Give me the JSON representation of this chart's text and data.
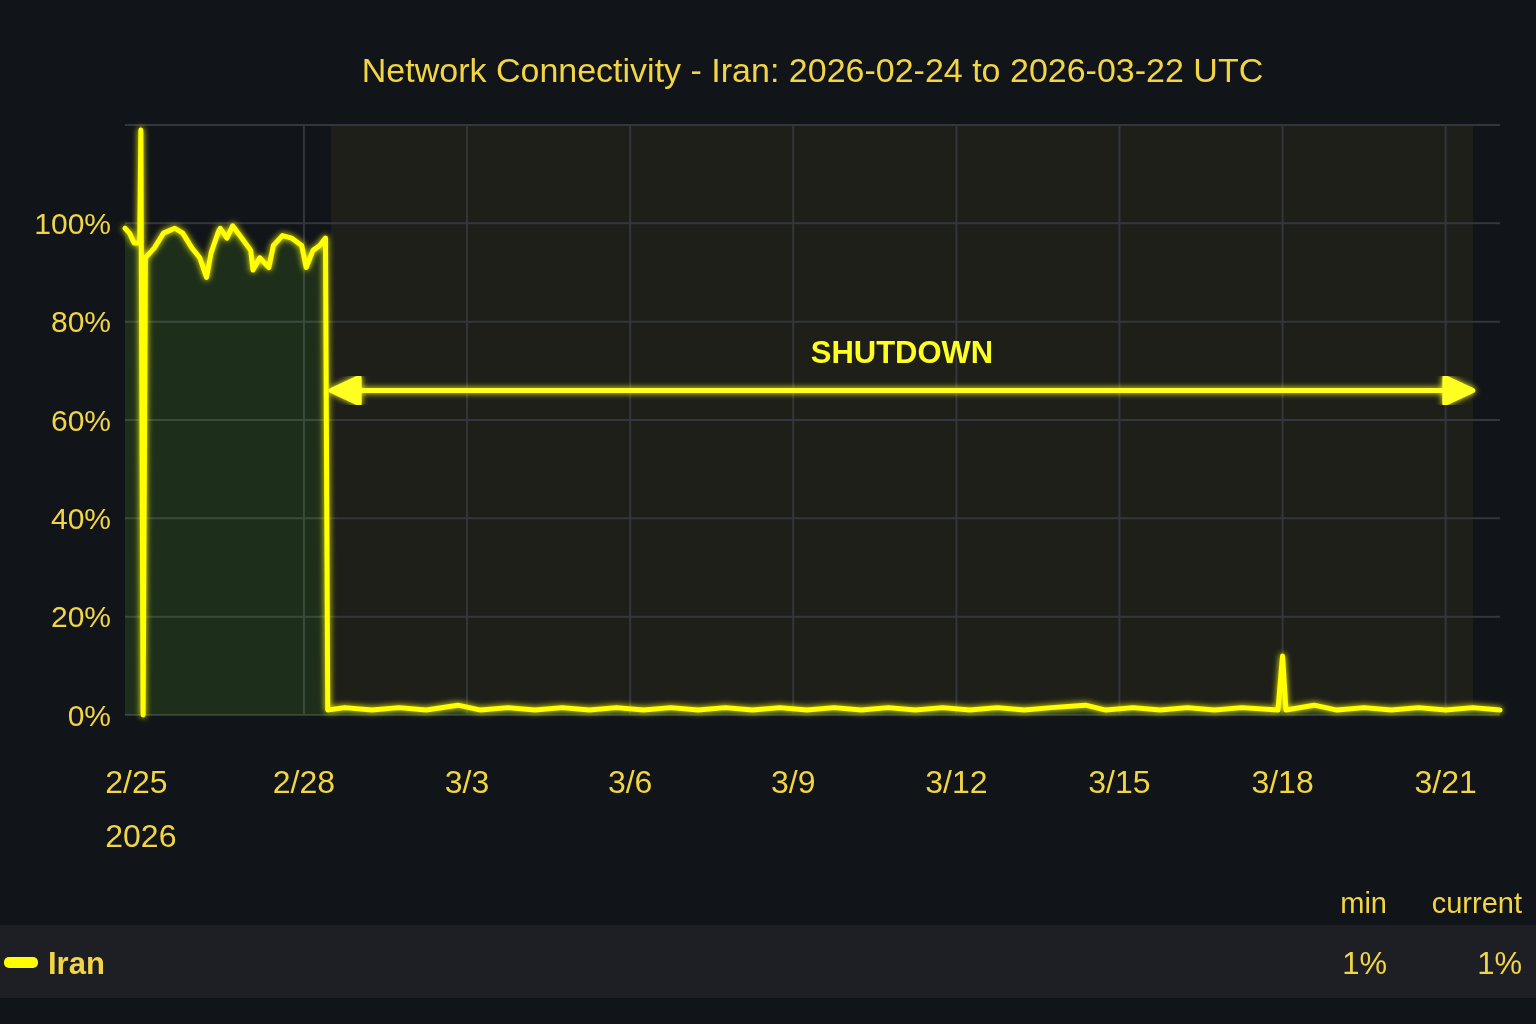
{
  "chart_data": {
    "type": "area",
    "title": "Network Connectivity - Iran: 2026-02-24 to 2026-03-22 UTC",
    "xlim": [
      "2026-02-24T17:00",
      "2026-03-22T00:00"
    ],
    "xticks": [
      {
        "value": "2026-02-25",
        "label": "2/25 2026"
      },
      {
        "value": "2026-02-28",
        "label": "2/28"
      },
      {
        "value": "2026-03-03",
        "label": "3/3"
      },
      {
        "value": "2026-03-06",
        "label": "3/6"
      },
      {
        "value": "2026-03-09",
        "label": "3/9"
      },
      {
        "value": "2026-03-12",
        "label": "3/12"
      },
      {
        "value": "2026-03-15",
        "label": "3/15"
      },
      {
        "value": "2026-03-18",
        "label": "3/18"
      },
      {
        "value": "2026-03-21",
        "label": "3/21"
      }
    ],
    "ylim": [
      0,
      120
    ],
    "yticks": [
      {
        "value": 0,
        "label": "0%"
      },
      {
        "value": 20,
        "label": "20%"
      },
      {
        "value": 40,
        "label": "40%"
      },
      {
        "value": 60,
        "label": "60%"
      },
      {
        "value": 80,
        "label": "80%"
      },
      {
        "value": 100,
        "label": "100%"
      },
      {
        "value": 120,
        "label": null
      }
    ],
    "grid": true,
    "legend": "bottom",
    "x": [
      "2026-02-24T17:00",
      "2026-02-24T19:00",
      "2026-02-24T21:00",
      "2026-02-24T23:30",
      "2026-02-25T00:00",
      "2026-02-25T01:00",
      "2026-02-25T02:00",
      "2026-02-25T06:00",
      "2026-02-25T10:00",
      "2026-02-25T15:00",
      "2026-02-25T18:30",
      "2026-02-25T22:30",
      "2026-02-26T02:00",
      "2026-02-26T05:00",
      "2026-02-26T07:00",
      "2026-02-26T10:00",
      "2026-02-26T11:00",
      "2026-02-26T14:00",
      "2026-02-26T16:30",
      "2026-02-26T20:30",
      "2026-02-27T00:30",
      "2026-02-27T01:30",
      "2026-02-27T04:30",
      "2026-02-27T08:30",
      "2026-02-27T10:30",
      "2026-02-27T14:30",
      "2026-02-27T18:30",
      "2026-02-27T23:00",
      "2026-02-28T01:00",
      "2026-02-28T04:00",
      "2026-02-28T07:00",
      "2026-02-28T09:30",
      "2026-02-28T10:30",
      "2026-02-28T18:00",
      "2026-03-01T06:00",
      "2026-03-01T18:00",
      "2026-03-02T06:00",
      "2026-03-02T20:00",
      "2026-03-03T06:00",
      "2026-03-03T18:00",
      "2026-03-04T06:00",
      "2026-03-04T18:00",
      "2026-03-05T06:00",
      "2026-03-05T18:00",
      "2026-03-06T06:00",
      "2026-03-06T18:00",
      "2026-03-07T06:00",
      "2026-03-07T18:00",
      "2026-03-08T06:00",
      "2026-03-08T18:00",
      "2026-03-09T06:00",
      "2026-03-09T18:00",
      "2026-03-10T06:00",
      "2026-03-10T18:00",
      "2026-03-11T06:00",
      "2026-03-11T18:00",
      "2026-03-12T06:00",
      "2026-03-12T18:00",
      "2026-03-13T06:00",
      "2026-03-13T18:00",
      "2026-03-14T09:00",
      "2026-03-14T18:00",
      "2026-03-15T06:00",
      "2026-03-15T18:00",
      "2026-03-16T06:00",
      "2026-03-16T18:00",
      "2026-03-17T06:00",
      "2026-03-17T22:00",
      "2026-03-18T00:00",
      "2026-03-18T01:30",
      "2026-03-18T14:00",
      "2026-03-19T00:00",
      "2026-03-19T12:00",
      "2026-03-20T00:00",
      "2026-03-20T12:00",
      "2026-03-21T00:00",
      "2026-03-21T12:00",
      "2026-03-22T00:00"
    ],
    "series": [
      {
        "name": "Iran",
        "color": "#ffff00",
        "values": [
          99,
          98,
          96,
          96,
          119,
          0,
          93,
          95,
          98,
          99,
          98,
          95,
          93,
          89,
          94,
          98,
          99,
          97,
          99.5,
          97,
          94.5,
          90.5,
          93,
          91,
          95.5,
          97.5,
          97,
          95.5,
          91,
          94.5,
          95.5,
          97,
          1,
          1.5,
          1,
          1.5,
          1,
          2,
          1,
          1.5,
          1,
          1.5,
          1,
          1.5,
          1,
          1.5,
          1,
          1.5,
          1,
          1.5,
          1,
          1.5,
          1,
          1.5,
          1,
          1.5,
          1,
          1.5,
          1,
          1.5,
          2,
          1,
          1.5,
          1,
          1.5,
          1,
          1.5,
          1,
          12,
          1,
          2,
          1,
          1.5,
          1,
          1.5,
          1,
          1.5,
          1
        ]
      }
    ],
    "bands": [
      {
        "axis": "x",
        "from": "2026-02-28T12:00",
        "to": "2026-03-21T12:00",
        "label": "SHUTDOWN",
        "color": "#ffff22"
      }
    ],
    "annotations": [
      "min",
      "1%",
      "current",
      "1%"
    ]
  }
}
